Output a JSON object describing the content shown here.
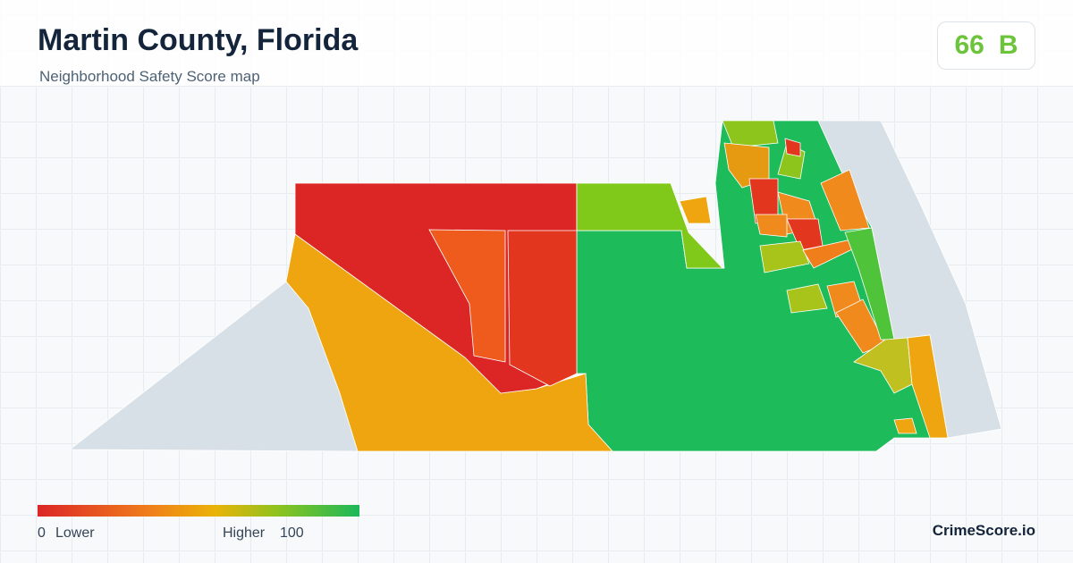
{
  "header": {
    "title": "Martin County, Florida",
    "subtitle": "Neighborhood Safety Score map"
  },
  "score": {
    "value": 66,
    "grade": "B"
  },
  "legend": {
    "min": 0,
    "min_label": "Lower",
    "max_label": "Higher",
    "max": 100
  },
  "brand": "CrimeScore.io"
}
